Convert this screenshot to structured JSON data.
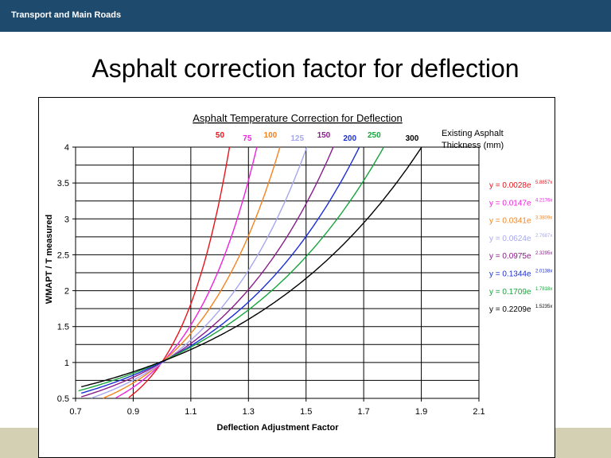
{
  "header": {
    "org_name": "Transport and Main Roads"
  },
  "slide": {
    "title": "Asphalt correction factor for deflection"
  },
  "chart_data": {
    "type": "line",
    "title": "Asphalt Temperature Correction for Deflection",
    "xlabel": "Deflection Adjustment Factor",
    "ylabel": "WMAPT / T measured",
    "xlim": [
      0.7,
      2.1
    ],
    "ylim": [
      0.5,
      4
    ],
    "xticks": [
      "0.7",
      "0.9",
      "1.1",
      "1.3",
      "1.5",
      "1.7",
      "1.9",
      "2.1"
    ],
    "yticks": [
      "0.5",
      "1",
      "1.5",
      "2",
      "2.5",
      "3",
      "3.5",
      "4"
    ],
    "legend_title": "Existing Asphalt Thickness (mm)",
    "grid": true,
    "series": [
      {
        "name": "50",
        "color": "#e8131b",
        "a": 0.0028,
        "b": 5.8857,
        "equation": "y = 0.0028e",
        "exponent": "5.8857x"
      },
      {
        "name": "75",
        "color": "#ee22dd",
        "a": 0.0147,
        "b": 4.2176,
        "equation": "y = 0.0147e",
        "exponent": "4.2176x"
      },
      {
        "name": "100",
        "color": "#f5831f",
        "a": 0.0341,
        "b": 3.3809,
        "equation": "y = 0.0341e",
        "exponent": "3.3809x"
      },
      {
        "name": "125",
        "color": "#a7a7ef",
        "a": 0.0624,
        "b": 2.7687,
        "equation": "y = 0.0624e",
        "exponent": "2.7687x"
      },
      {
        "name": "150",
        "color": "#8a1c8c",
        "a": 0.0975,
        "b": 2.3295,
        "equation": "y = 0.0975e",
        "exponent": "2.3295x"
      },
      {
        "name": "200",
        "color": "#1b2fd6",
        "a": 0.1344,
        "b": 2.0138,
        "equation": "y = 0.1344e",
        "exponent": "2.0138x"
      },
      {
        "name": "250",
        "color": "#16a43b",
        "a": 0.1709,
        "b": 1.7818,
        "equation": "y = 0.1709e",
        "exponent": "1.7818x"
      },
      {
        "name": "300",
        "color": "#000000",
        "a": 0.2209,
        "b": 1.5235,
        "equation": "y = 0.2209e",
        "exponent": "1.5235x"
      }
    ]
  }
}
